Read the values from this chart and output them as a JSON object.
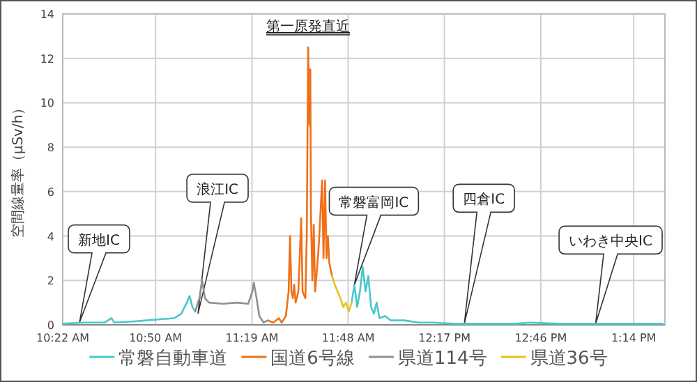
{
  "chart_data": {
    "type": "line",
    "title": "第一原発直近",
    "ylabel": "空間線量率（μSv/h）",
    "xlim": [
      10.367,
      13.39
    ],
    "ylim": [
      0,
      14
    ],
    "xticks": [
      {
        "value": 10.367,
        "label": "10:22 AM"
      },
      {
        "value": 10.833,
        "label": "10:50 AM"
      },
      {
        "value": 11.317,
        "label": "11:19 AM"
      },
      {
        "value": 11.8,
        "label": "11:48 AM"
      },
      {
        "value": 12.283,
        "label": "12:17 PM"
      },
      {
        "value": 12.767,
        "label": "12:46 PM"
      },
      {
        "value": 13.233,
        "label": "1:14 PM"
      }
    ],
    "yticks": [
      0,
      2,
      4,
      6,
      8,
      10,
      12,
      14
    ],
    "grid": true,
    "legend": "bottom",
    "marker": "none",
    "line_style": "solid",
    "series": [
      {
        "name": "常磐自動車道",
        "color": "#48c8cc",
        "x": [
          10.367,
          10.472,
          10.577,
          10.612,
          10.626,
          10.717,
          10.787,
          10.857,
          10.927,
          10.962,
          10.99,
          11.004,
          11.018,
          11.032
        ],
        "values": [
          0.05,
          0.1,
          0.1,
          0.3,
          0.1,
          0.15,
          0.2,
          0.25,
          0.3,
          0.5,
          1.0,
          1.3,
          0.8,
          0.6
        ]
      },
      {
        "color": "#48c8cc",
        "x": [
          11.817,
          11.831,
          11.845,
          11.859,
          11.873,
          11.887,
          11.901,
          11.915,
          11.929,
          11.943,
          11.957,
          11.985,
          12.013,
          12.083,
          12.153,
          12.223,
          12.328,
          12.503,
          12.643,
          12.713,
          12.853,
          12.993,
          13.133,
          13.273,
          13.378
        ],
        "values": [
          1.0,
          1.8,
          0.8,
          1.5,
          2.6,
          1.5,
          2.2,
          0.8,
          0.5,
          1.0,
          0.3,
          0.4,
          0.2,
          0.2,
          0.1,
          0.1,
          0.05,
          0.05,
          0.05,
          0.1,
          0.05,
          0.05,
          0.05,
          0.05,
          0.05
        ]
      },
      {
        "name": "国道6号線",
        "color": "#f07018",
        "x": [
          11.396,
          11.424,
          11.452,
          11.466,
          11.487,
          11.501,
          11.508,
          11.515,
          11.522,
          11.529,
          11.536,
          11.55,
          11.564,
          11.571,
          11.585,
          11.592,
          11.599,
          11.606,
          11.61,
          11.613,
          11.62,
          11.627,
          11.634,
          11.648,
          11.655,
          11.669,
          11.676,
          11.684,
          11.691,
          11.698,
          11.705,
          11.719
        ],
        "values": [
          0.2,
          0.1,
          0.3,
          0.1,
          0.4,
          1.5,
          4.0,
          1.5,
          1.2,
          1.8,
          1.0,
          1.5,
          4.8,
          1.5,
          1.2,
          4.0,
          12.5,
          9.0,
          11.5,
          5.0,
          2.0,
          4.5,
          1.5,
          3.0,
          4.0,
          6.5,
          3.0,
          6.5,
          3.0,
          4.0,
          2.8,
          2.2
        ]
      },
      {
        "name": "県道114号",
        "color": "#909090",
        "x": [
          11.032,
          11.053,
          11.067,
          11.081,
          11.102,
          11.172,
          11.242,
          11.298,
          11.319,
          11.326,
          11.34,
          11.354,
          11.375,
          11.396
        ],
        "values": [
          0.6,
          1.2,
          2.0,
          1.2,
          1.0,
          0.95,
          1.0,
          0.95,
          1.5,
          1.9,
          1.2,
          0.4,
          0.1,
          0.2
        ]
      },
      {
        "name": "県道36号",
        "color": "#e8c020",
        "x": [
          11.719,
          11.733,
          11.747,
          11.761,
          11.775,
          11.789,
          11.803,
          11.817
        ],
        "values": [
          2.2,
          1.8,
          1.5,
          1.2,
          0.8,
          1.0,
          0.6,
          1.0
        ]
      }
    ],
    "annotations": [
      {
        "text": "新地IC",
        "x": 10.451,
        "y": 0.1
      },
      {
        "text": "浪江IC",
        "x": 11.046,
        "y": 0.5
      },
      {
        "text": "常磐富岡IC",
        "x": 11.831,
        "y": 1.8
      },
      {
        "text": "四倉IC",
        "x": 12.383,
        "y": 0.05
      },
      {
        "text": "いわき中央IC",
        "x": 13.042,
        "y": 0.05
      }
    ]
  }
}
